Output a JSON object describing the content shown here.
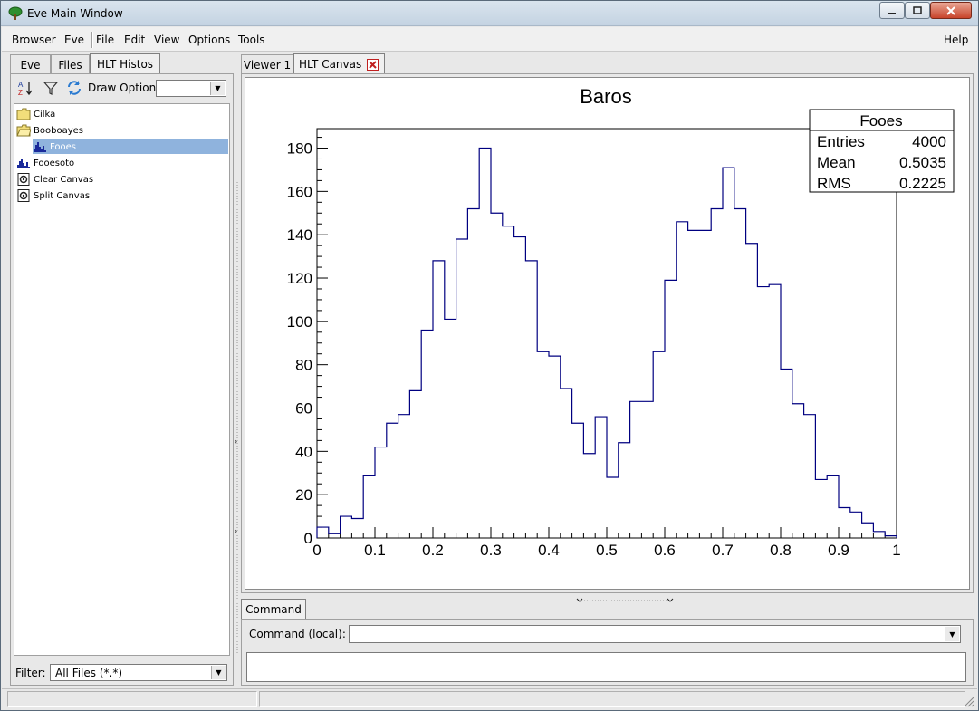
{
  "window": {
    "title": "Eve Main Window"
  },
  "menubar": {
    "items": [
      "Browser",
      "Eve",
      "File",
      "Edit",
      "View",
      "Options",
      "Tools"
    ],
    "help": "Help"
  },
  "left_panel": {
    "tabs": [
      "Eve",
      "Files",
      "HLT Histos"
    ],
    "active_tab": "HLT Histos",
    "draw_option_label": "Draw Option:",
    "draw_option_value": "",
    "tree": [
      {
        "label": "Cilka",
        "icon": "folder-icon"
      },
      {
        "label": "Booboayes",
        "icon": "folder-open-icon"
      },
      {
        "label": "Fooes",
        "icon": "histogram-icon",
        "selected": true
      },
      {
        "label": "Fooesoto",
        "icon": "histogram-icon"
      },
      {
        "label": "Clear Canvas",
        "icon": "macro-icon"
      },
      {
        "label": "Split Canvas",
        "icon": "macro-icon"
      }
    ],
    "filter_label": "Filter:",
    "filter_value": "All Files (*.*)"
  },
  "right_panel": {
    "tabs": [
      "Viewer 1",
      "HLT Canvas"
    ],
    "active_tab": "HLT Canvas"
  },
  "command": {
    "tab": "Command",
    "label": "Command (local):",
    "value": ""
  },
  "stats_box": {
    "name": "Fooes",
    "rows": [
      {
        "label": "Entries",
        "value": "4000"
      },
      {
        "label": "Mean",
        "value": "0.5035"
      },
      {
        "label": "RMS",
        "value": "0.2225"
      }
    ]
  },
  "chart_data": {
    "type": "bar",
    "style": "step-histogram",
    "title": "Baros",
    "xlabel": "",
    "ylabel": "",
    "xlim": [
      0,
      1
    ],
    "ylim": [
      0,
      189
    ],
    "line_color": "#000080",
    "x_ticks": [
      "0",
      "0.1",
      "0.2",
      "0.3",
      "0.4",
      "0.5",
      "0.6",
      "0.7",
      "0.8",
      "0.9",
      "1"
    ],
    "y_ticks": [
      "0",
      "20",
      "40",
      "60",
      "80",
      "100",
      "120",
      "140",
      "160",
      "180"
    ],
    "bin_width": 0.02,
    "values": [
      5,
      2,
      10,
      9,
      29,
      42,
      53,
      57,
      68,
      96,
      128,
      101,
      138,
      152,
      180,
      150,
      144,
      139,
      128,
      86,
      84,
      69,
      53,
      39,
      56,
      28,
      44,
      63,
      63,
      86,
      119,
      146,
      142,
      142,
      152,
      171,
      152,
      136,
      116,
      117,
      78,
      62,
      57,
      27,
      29,
      14,
      12,
      7,
      3,
      1
    ]
  }
}
